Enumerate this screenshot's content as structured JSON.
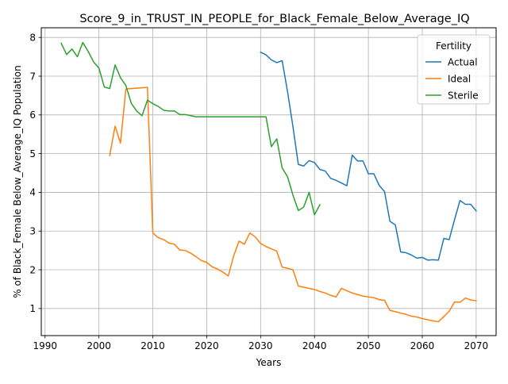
{
  "chart_data": {
    "type": "line",
    "title": "Score_9_in_TRUST_IN_PEOPLE_for_Black_Female_Below_Average_IQ",
    "xlabel": "Years",
    "ylabel": "% of Black_Female Below_Average_IQ Population",
    "xlim": [
      1989.3,
      2073.7
    ],
    "ylim": [
      0.3,
      8.25
    ],
    "xticks": [
      1990,
      2000,
      2010,
      2020,
      2030,
      2040,
      2050,
      2060,
      2070
    ],
    "yticks": [
      1,
      2,
      3,
      4,
      5,
      6,
      7,
      8
    ],
    "grid": true,
    "legend": {
      "title": "Fertility",
      "position": "top-right"
    },
    "series": [
      {
        "name": "Actual",
        "color": "#1f77b4",
        "points": [
          [
            2030,
            7.62
          ],
          [
            2031,
            7.55
          ],
          [
            2032,
            7.42
          ],
          [
            2033,
            7.35
          ],
          [
            2034,
            7.4
          ],
          [
            2035,
            6.6
          ],
          [
            2036,
            5.7
          ],
          [
            2037,
            4.72
          ],
          [
            2038,
            4.68
          ],
          [
            2039,
            4.82
          ],
          [
            2040,
            4.77
          ],
          [
            2041,
            4.59
          ],
          [
            2042,
            4.55
          ],
          [
            2043,
            4.36
          ],
          [
            2044,
            4.31
          ],
          [
            2045,
            4.24
          ],
          [
            2046,
            4.17
          ],
          [
            2047,
            4.96
          ],
          [
            2048,
            4.81
          ],
          [
            2049,
            4.81
          ],
          [
            2050,
            4.48
          ],
          [
            2051,
            4.48
          ],
          [
            2052,
            4.18
          ],
          [
            2053,
            4.02
          ],
          [
            2054,
            3.25
          ],
          [
            2055,
            3.16
          ],
          [
            2056,
            2.46
          ],
          [
            2057,
            2.44
          ],
          [
            2058,
            2.38
          ],
          [
            2059,
            2.3
          ],
          [
            2060,
            2.32
          ],
          [
            2061,
            2.25
          ],
          [
            2062,
            2.26
          ],
          [
            2063,
            2.25
          ],
          [
            2064,
            2.81
          ],
          [
            2065,
            2.78
          ],
          [
            2066,
            3.3
          ],
          [
            2067,
            3.79
          ],
          [
            2068,
            3.69
          ],
          [
            2069,
            3.69
          ],
          [
            2070,
            3.52
          ]
        ]
      },
      {
        "name": "Ideal",
        "color": "#ff7f0e",
        "points": [
          [
            2002,
            4.95
          ],
          [
            2003,
            5.71
          ],
          [
            2004,
            5.27
          ],
          [
            2005,
            6.67
          ],
          [
            2006,
            6.68
          ],
          [
            2007,
            6.69
          ],
          [
            2008,
            6.7
          ],
          [
            2009,
            6.71
          ],
          [
            2010,
            2.95
          ],
          [
            2011,
            2.83
          ],
          [
            2012,
            2.78
          ],
          [
            2013,
            2.69
          ],
          [
            2014,
            2.66
          ],
          [
            2015,
            2.51
          ],
          [
            2016,
            2.5
          ],
          [
            2017,
            2.43
          ],
          [
            2018,
            2.34
          ],
          [
            2019,
            2.24
          ],
          [
            2020,
            2.19
          ],
          [
            2021,
            2.08
          ],
          [
            2022,
            2.02
          ],
          [
            2023,
            1.94
          ],
          [
            2024,
            1.84
          ],
          [
            2025,
            2.36
          ],
          [
            2026,
            2.74
          ],
          [
            2027,
            2.66
          ],
          [
            2028,
            2.95
          ],
          [
            2029,
            2.85
          ],
          [
            2030,
            2.68
          ],
          [
            2031,
            2.6
          ],
          [
            2032,
            2.54
          ],
          [
            2033,
            2.48
          ],
          [
            2034,
            2.07
          ],
          [
            2035,
            2.04
          ],
          [
            2036,
            2.0
          ],
          [
            2037,
            1.58
          ],
          [
            2038,
            1.55
          ],
          [
            2039,
            1.52
          ],
          [
            2040,
            1.49
          ],
          [
            2041,
            1.44
          ],
          [
            2042,
            1.4
          ],
          [
            2043,
            1.34
          ],
          [
            2044,
            1.3
          ],
          [
            2045,
            1.52
          ],
          [
            2046,
            1.46
          ],
          [
            2047,
            1.4
          ],
          [
            2048,
            1.36
          ],
          [
            2049,
            1.32
          ],
          [
            2050,
            1.3
          ],
          [
            2051,
            1.28
          ],
          [
            2052,
            1.23
          ],
          [
            2053,
            1.21
          ],
          [
            2054,
            0.95
          ],
          [
            2055,
            0.92
          ],
          [
            2056,
            0.88
          ],
          [
            2057,
            0.85
          ],
          [
            2058,
            0.8
          ],
          [
            2059,
            0.78
          ],
          [
            2060,
            0.74
          ],
          [
            2061,
            0.71
          ],
          [
            2062,
            0.68
          ],
          [
            2063,
            0.66
          ],
          [
            2064,
            0.79
          ],
          [
            2065,
            0.93
          ],
          [
            2066,
            1.17
          ],
          [
            2067,
            1.16
          ],
          [
            2068,
            1.27
          ],
          [
            2069,
            1.22
          ],
          [
            2070,
            1.2
          ]
        ]
      },
      {
        "name": "Sterile",
        "color": "#2ca02c",
        "points": [
          [
            1993,
            7.85
          ],
          [
            1994,
            7.56
          ],
          [
            1995,
            7.7
          ],
          [
            1996,
            7.5
          ],
          [
            1997,
            7.87
          ],
          [
            1998,
            7.64
          ],
          [
            1999,
            7.37
          ],
          [
            2000,
            7.21
          ],
          [
            2001,
            6.72
          ],
          [
            2002,
            6.68
          ],
          [
            2003,
            7.29
          ],
          [
            2004,
            6.96
          ],
          [
            2005,
            6.76
          ],
          [
            2006,
            6.3
          ],
          [
            2007,
            6.1
          ],
          [
            2008,
            5.98
          ],
          [
            2009,
            6.38
          ],
          [
            2010,
            6.29
          ],
          [
            2011,
            6.22
          ],
          [
            2012,
            6.12
          ],
          [
            2013,
            6.1
          ],
          [
            2014,
            6.1
          ],
          [
            2015,
            6.01
          ],
          [
            2016,
            6.01
          ],
          [
            2017,
            5.98
          ],
          [
            2018,
            5.95
          ],
          [
            2019,
            5.95
          ],
          [
            2020,
            5.95
          ],
          [
            2021,
            5.95
          ],
          [
            2022,
            5.95
          ],
          [
            2023,
            5.95
          ],
          [
            2024,
            5.95
          ],
          [
            2025,
            5.95
          ],
          [
            2026,
            5.95
          ],
          [
            2027,
            5.95
          ],
          [
            2028,
            5.95
          ],
          [
            2029,
            5.95
          ],
          [
            2030,
            5.95
          ],
          [
            2031,
            5.95
          ],
          [
            2032,
            5.18
          ],
          [
            2033,
            5.38
          ],
          [
            2034,
            4.63
          ],
          [
            2035,
            4.4
          ],
          [
            2036,
            3.93
          ],
          [
            2037,
            3.53
          ],
          [
            2038,
            3.62
          ],
          [
            2039,
            4.0
          ],
          [
            2040,
            3.42
          ],
          [
            2041,
            3.68
          ]
        ]
      }
    ]
  }
}
